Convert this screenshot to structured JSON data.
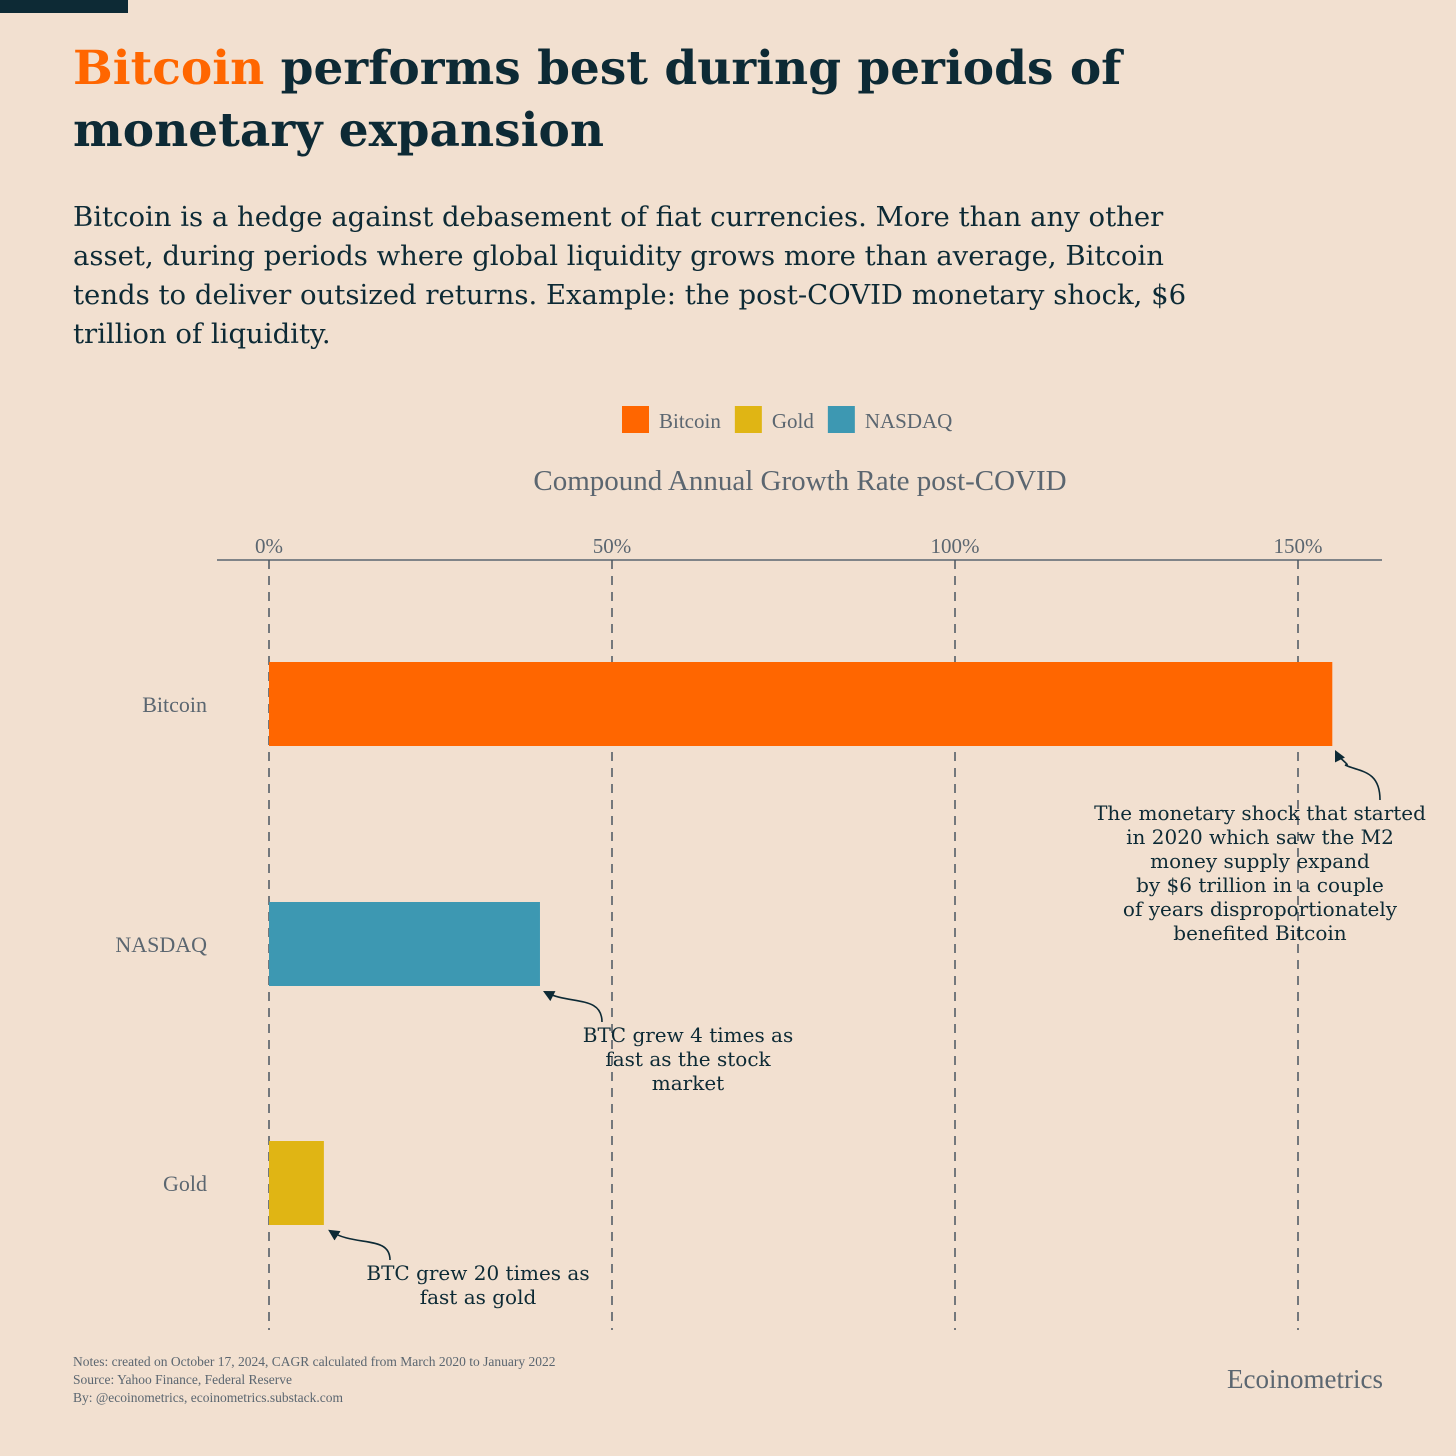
{
  "title": {
    "highlight": "Bitcoin",
    "rest_line1": " performs best during periods of",
    "line2": "monetary expansion"
  },
  "subtitle": "Bitcoin is a hedge against debasement of fiat currencies. More than any other asset, during periods where global liquidity grows more than average, Bitcoin tends to deliver outsized returns. Example: the post-COVID monetary shock, $6 trillion of liquidity.",
  "notes": {
    "line1": "Notes: created on October 17, 2024, CAGR calculated from March 2020 to January 2022",
    "line2": "Source: Yahoo Finance, Federal Reserve",
    "line3": "By: @ecoinometrics, ecoinometrics.substack.com"
  },
  "brand": "Ecoinometrics",
  "colors": {
    "bitcoin": "#ff6600",
    "gold": "#e0b514",
    "nasdaq": "#3d98b2",
    "text": "#0d2a35",
    "muted": "#5b6670"
  },
  "chart_data": {
    "type": "bar",
    "orientation": "horizontal",
    "title": "Compound Annual Growth Rate post-COVID",
    "categories": [
      "Bitcoin",
      "NASDAQ",
      "Gold"
    ],
    "values": [
      155,
      39.5,
      8
    ],
    "colors": [
      "#ff6600",
      "#3d98b2",
      "#e0b514"
    ],
    "xlim": [
      -8,
      162
    ],
    "xticks": [
      0,
      50,
      100,
      150
    ],
    "xtick_labels": [
      "0%",
      "50%",
      "100%",
      "150%"
    ],
    "grid": true,
    "legend": {
      "placement": "top-center",
      "entries": [
        {
          "label": "Bitcoin",
          "color": "#ff6600"
        },
        {
          "label": "Gold",
          "color": "#e0b514"
        },
        {
          "label": "NASDAQ",
          "color": "#3d98b2"
        }
      ]
    },
    "annotations": [
      {
        "target": "Bitcoin",
        "lines": [
          "The monetary shock that started",
          "in 2020 which saw the M2",
          "money supply expand",
          "by $6 trillion in a couple",
          "of years disproportionately",
          "benefited Bitcoin"
        ]
      },
      {
        "target": "NASDAQ",
        "lines": [
          "BTC grew 4 times as",
          "fast as the stock",
          "market"
        ]
      },
      {
        "target": "Gold",
        "lines": [
          "BTC grew 20 times as",
          "fast as gold"
        ]
      }
    ]
  }
}
